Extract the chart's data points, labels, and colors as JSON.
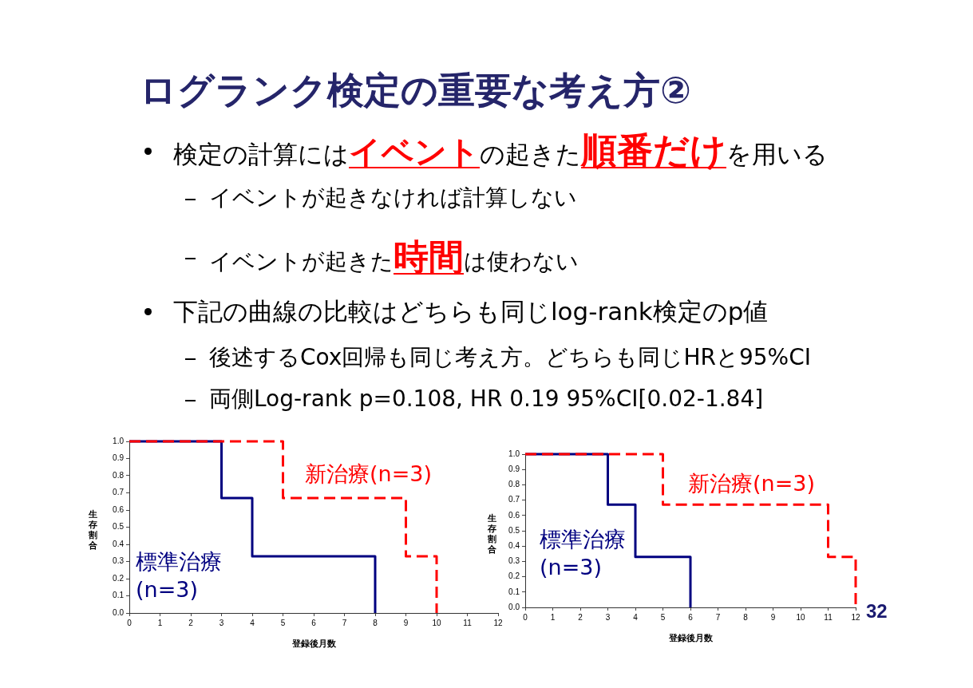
{
  "chart_data": [
    {
      "type": "other",
      "title": "ログランク検定の重要な考え方②",
      "annotations": [
        "検定の計算には",
        "イベント",
        "の起きた",
        "順番だけ",
        "を用いる",
        "イベントが起きなければ計算しない",
        "イベントが起きた",
        "時間",
        "は使わない",
        "下記の曲線の比較はどちらも同じlog-rank検定のp値",
        "後述するCox回帰も同じ考え方。どちらも同じHRと95%CI",
        "両側Log-rank p=0.108, HR 0.19 95%CI[0.02-1.84]"
      ]
    },
    {
      "type": "step",
      "xlabel": "登録後月数",
      "ylabel": "生存割合",
      "xlim": [
        0,
        12
      ],
      "xticks": [
        0,
        1,
        2,
        3,
        4,
        5,
        6,
        7,
        8,
        9,
        10,
        11,
        12
      ],
      "ylim": [
        0,
        1
      ],
      "yticks": [
        {
          "value": 0,
          "label": "0.0"
        },
        {
          "value": 0.1,
          "label": "0.1"
        },
        {
          "value": 0.2,
          "label": "0.2"
        },
        {
          "value": 0.3,
          "label": "0.3"
        },
        {
          "value": 0.4,
          "label": "0.4"
        },
        {
          "value": 0.5,
          "label": "0.5"
        },
        {
          "value": 0.6,
          "label": "0.6"
        },
        {
          "value": 0.7,
          "label": "0.7"
        },
        {
          "value": 0.8,
          "label": "0.8"
        },
        {
          "value": 0.9,
          "label": "0.9"
        },
        {
          "value": 1,
          "label": "1.0"
        }
      ],
      "series": [
        {
          "name": "標準治療(n=3)",
          "color": "#000080",
          "line_style": "solid",
          "x": [
            0,
            3,
            4,
            8
          ],
          "values": [
            1,
            0.67,
            0.33,
            0
          ]
        },
        {
          "name": "新治療(n=3)",
          "color": "#ff0000",
          "line_style": "dashed",
          "x": [
            0,
            5,
            9,
            10
          ],
          "values": [
            1,
            0.67,
            0.33,
            0
          ]
        }
      ]
    },
    {
      "type": "step",
      "xlabel": "登録後月数",
      "ylabel": "生存割合",
      "xlim": [
        0,
        12
      ],
      "xticks": [
        0,
        1,
        2,
        3,
        4,
        5,
        6,
        7,
        8,
        9,
        10,
        11,
        12
      ],
      "ylim": [
        0,
        1
      ],
      "yticks": [
        {
          "value": 0,
          "label": "0.0"
        },
        {
          "value": 0.1,
          "label": "0.1"
        },
        {
          "value": 0.2,
          "label": "0.2"
        },
        {
          "value": 0.3,
          "label": "0.3"
        },
        {
          "value": 0.4,
          "label": "0.4"
        },
        {
          "value": 0.5,
          "label": "0.5"
        },
        {
          "value": 0.6,
          "label": "0.6"
        },
        {
          "value": 0.7,
          "label": "0.7"
        },
        {
          "value": 0.8,
          "label": "0.8"
        },
        {
          "value": 0.9,
          "label": "0.9"
        },
        {
          "value": 1,
          "label": "1.0"
        }
      ],
      "series": [
        {
          "name": "標準治療(n=3)",
          "color": "#000080",
          "line_style": "solid",
          "x": [
            0,
            3,
            4,
            6
          ],
          "values": [
            1,
            0.67,
            0.33,
            0
          ]
        },
        {
          "name": "新治療(n=3)",
          "color": "#ff0000",
          "line_style": "dashed",
          "x": [
            0,
            5,
            11,
            12
          ],
          "values": [
            1,
            0.67,
            0.33,
            0
          ]
        }
      ],
      "annotations": [
        "32"
      ]
    }
  ]
}
